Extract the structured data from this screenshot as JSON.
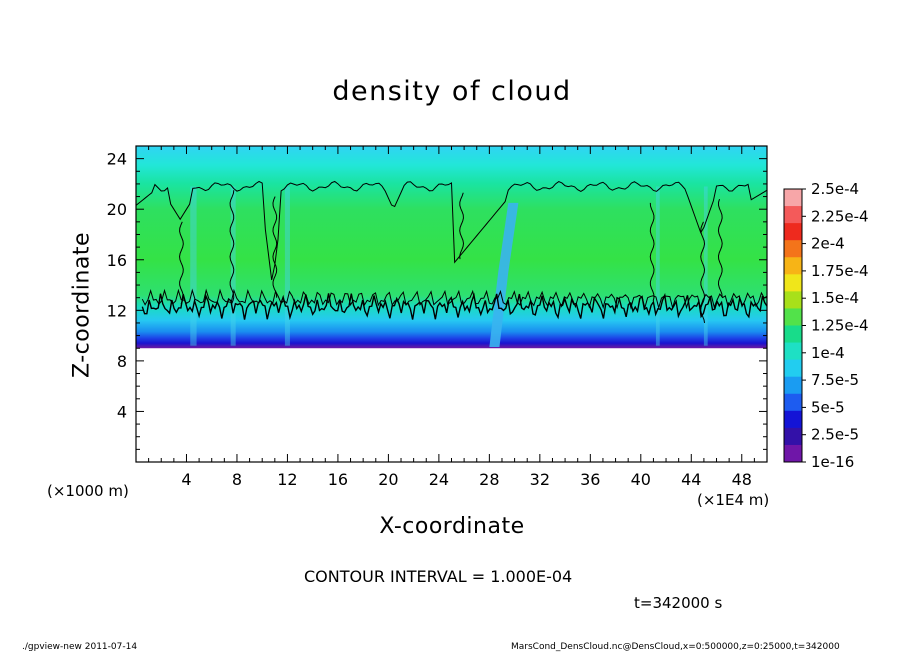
{
  "chart_data": {
    "type": "heatmap",
    "title": "density of cloud",
    "xlabel": "X-coordinate",
    "ylabel": "Z-coordinate",
    "x_unit_note": "(×1E4 m)",
    "y_unit_note": "(×1000 m)",
    "xlim": [
      0,
      50
    ],
    "ylim": [
      0,
      25
    ],
    "x_ticks": [
      4,
      8,
      12,
      16,
      20,
      24,
      28,
      32,
      36,
      40,
      44,
      48
    ],
    "y_ticks": [
      4,
      8,
      12,
      16,
      20,
      24
    ],
    "colorbar": {
      "labels": [
        "2.5e-4",
        "2.25e-4",
        "2e-4",
        "1.75e-4",
        "1.5e-4",
        "1.25e-4",
        "1e-4",
        "7.5e-5",
        "5e-5",
        "2.5e-5",
        "1e-16"
      ],
      "colors": [
        "#f7a6a8",
        "#f45a5a",
        "#ee2a1e",
        "#f4741a",
        "#f7b416",
        "#f0e61a",
        "#a8e01a",
        "#52e24a",
        "#18dc8a",
        "#1ee0c4",
        "#22cdf0",
        "#1a9cf2",
        "#1d5cf0",
        "#1414d6",
        "#3311a8",
        "#6f16a8"
      ]
    },
    "cloud_layer": {
      "base_z": 9,
      "top_z": 22,
      "contour_level": 0.0001,
      "contour_top_z": 21.8,
      "contour_bottom_z": 12.3,
      "cloud_gap_x": 28.3
    },
    "contour_interval": "CONTOUR INTERVAL = 1.000E-04",
    "time_label": "t=342000 s"
  },
  "footer": {
    "left": "./gpview-new  2011-07-14",
    "right": "MarsCond_DensCloud.nc@DensCloud,x=0:500000,z=0:25000,t=342000"
  }
}
